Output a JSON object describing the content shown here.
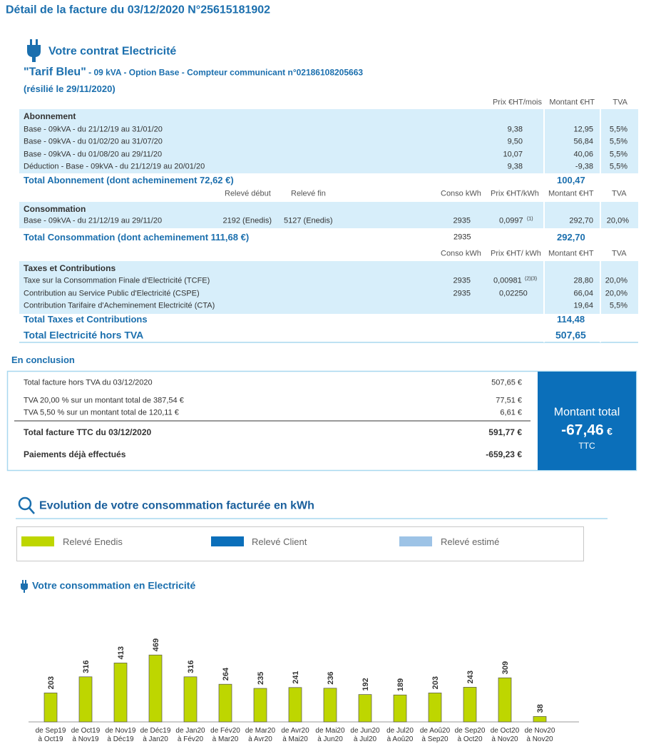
{
  "title": "Détail de la facture du 03/12/2020 N°25615181902",
  "contract": {
    "heading": "Votre contrat Electricité",
    "tariff": "\"Tarif Bleu\"",
    "details": " - 09 kVA - Option Base - Compteur communicant n°02186108205663",
    "status": "(résilié le 29/11/2020)"
  },
  "abonnement": {
    "headers": [
      "Prix €HT/mois",
      "Montant €HT",
      "TVA"
    ],
    "section": "Abonnement",
    "rows": [
      {
        "label": "Base - 09kVA - du 21/12/19 au 31/01/20",
        "prix": "9,38",
        "montant": "12,95",
        "tva": "5,5%"
      },
      {
        "label": "Base - 09kVA - du 01/02/20 au 31/07/20",
        "prix": "9,50",
        "montant": "56,84",
        "tva": "5,5%"
      },
      {
        "label": "Base - 09kVA - du 01/08/20 au 29/11/20",
        "prix": "10,07",
        "montant": "40,06",
        "tva": "5,5%"
      },
      {
        "label": "Déduction - Base - 09kVA - du 21/12/19 au 20/01/20",
        "prix": "9,38",
        "montant": "-9,38",
        "tva": "5,5%"
      }
    ],
    "total_label": "Total Abonnement (dont acheminement 72,62 €)",
    "total": "100,47"
  },
  "consommation": {
    "headers": [
      "Relevé début",
      "Relevé fin",
      "Conso kWh",
      "Prix €HT/kWh",
      "Montant €HT",
      "TVA"
    ],
    "section": "Consommation",
    "rows": [
      {
        "label": "Base - 09kVA - du 21/12/19 au 29/11/20",
        "debut": "2192 (Enedis)",
        "fin": "5127 (Enedis)",
        "conso": "2935",
        "prix": "0,0997",
        "note": "(1)",
        "montant": "292,70",
        "tva": "20,0%"
      }
    ],
    "total_label": "Total Consommation (dont acheminement 111,68 €)",
    "total_conso": "2935",
    "total": "292,70"
  },
  "taxes": {
    "headers": [
      "Conso kWh",
      "Prix €HT/ kWh",
      "Montant €HT",
      "TVA"
    ],
    "section": "Taxes et Contributions",
    "rows": [
      {
        "label": "Taxe sur la Consommation Finale d'Electricité (TCFE)",
        "conso": "2935",
        "prix": "0,00981",
        "note": "(2)(3)",
        "montant": "28,80",
        "tva": "20,0%"
      },
      {
        "label": "Contribution au Service Public d'Electricité (CSPE)",
        "conso": "2935",
        "prix": "0,02250",
        "montant": "66,04",
        "tva": "20,0%"
      },
      {
        "label": "Contribution Tarifaire d'Acheminement Electricité (CTA)",
        "montant": "19,64",
        "tva": "5,5%"
      }
    ],
    "total_label": "Total Taxes et Contributions",
    "total": "114,48"
  },
  "total_ht": {
    "label": "Total Electricité hors TVA",
    "value": "507,65"
  },
  "conclusion": {
    "heading": "En conclusion",
    "rows": [
      {
        "label": "Total facture hors TVA du 03/12/2020",
        "amount": "507,65 €"
      },
      {
        "label": "TVA 20,00 % sur un montant total de 387,54 €",
        "amount": "77,51 €"
      },
      {
        "label": "TVA 5,50 % sur un montant total de 120,11 €",
        "amount": "6,61 €"
      }
    ],
    "ttc": {
      "label": "Total facture TTC du 03/12/2020",
      "amount": "591,77 €"
    },
    "paid": {
      "label": "Paiements déjà effectués",
      "amount": "-659,23 €"
    },
    "panel": {
      "label": "Montant total",
      "amount": "-67,46",
      "currency": "€",
      "suffix": "TTC"
    }
  },
  "evolution_heading": "Evolution de votre consommation facturée en kWh",
  "chart_data": {
    "type": "bar",
    "title": "Votre consommation en Electricité",
    "categories": [
      "de Sep19\nà Oct19",
      "de Oct19\nà Nov19",
      "de Nov19\nà Déc19",
      "de Déc19\nà Jan20",
      "de Jan20\nà Fév20",
      "de Fév20\nà Mar20",
      "de Mar20\nà Avr20",
      "de Avr20\nà Mai20",
      "de Mai20\nà Jun20",
      "de Jun20\nà Jul20",
      "de Jul20\nà Aoû20",
      "de Aoû20\nà Sep20",
      "de Sep20\nà Oct20",
      "de Oct20\nà Nov20",
      "de Nov20\nà Nov20"
    ],
    "series": [
      {
        "name": "Relevé Enedis",
        "color": "#bed600",
        "values": [
          203,
          316,
          413,
          469,
          316,
          264,
          235,
          241,
          236,
          192,
          189,
          203,
          243,
          309,
          38
        ]
      },
      {
        "name": "Relevé Client",
        "color": "#0b6fba",
        "values": [
          null,
          null,
          null,
          null,
          null,
          null,
          null,
          null,
          null,
          null,
          null,
          null,
          null,
          null,
          null
        ]
      },
      {
        "name": "Relevé estimé",
        "color": "#9dc3e6",
        "values": [
          null,
          null,
          null,
          null,
          null,
          null,
          null,
          null,
          null,
          null,
          null,
          null,
          null,
          null,
          null
        ]
      }
    ]
  }
}
